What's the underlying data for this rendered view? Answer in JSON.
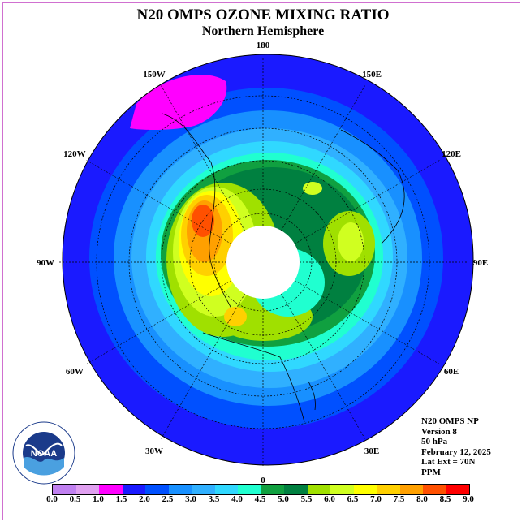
{
  "title": "N20 OMPS OZONE MIXING RATIO",
  "subtitle": "Northern Hemisphere",
  "longitude_labels": [
    {
      "label": "90E",
      "lon": 90
    },
    {
      "label": "60E",
      "lon": 60
    },
    {
      "label": "30E",
      "lon": 30
    },
    {
      "label": "0",
      "lon": 0
    },
    {
      "label": "30W",
      "lon": -30
    },
    {
      "label": "60W",
      "lon": -60
    },
    {
      "label": "90W",
      "lon": -90
    },
    {
      "label": "120W",
      "lon": -120
    },
    {
      "label": "150W",
      "lon": -150
    },
    {
      "label": "180",
      "lon": 180
    },
    {
      "label": "150E",
      "lon": 150
    },
    {
      "label": "120E",
      "lon": 120
    }
  ],
  "info": {
    "product": "N20 OMPS NP",
    "version": "Version 8",
    "level": "50 hPa",
    "date": "February 12, 2025",
    "lat_ext": "Lat Ext = 70N",
    "units": "PPM"
  },
  "logo_text": "NOAA",
  "colorbar": {
    "ticks": [
      "0.0",
      "0.5",
      "1.0",
      "1.5",
      "2.0",
      "2.5",
      "3.0",
      "3.5",
      "4.0",
      "4.5",
      "5.0",
      "5.5",
      "6.0",
      "6.5",
      "7.0",
      "7.5",
      "8.0",
      "8.5",
      "9.0"
    ],
    "colors": [
      "#c080f0",
      "#e0a0f0",
      "#ff00ff",
      "#1a1aff",
      "#0050ff",
      "#1890ff",
      "#30b0ff",
      "#30d8ff",
      "#20ffd0",
      "#10a040",
      "#008040",
      "#a0e000",
      "#d0ff20",
      "#ffff00",
      "#ffd000",
      "#ffa000",
      "#ff5000",
      "#ff0000",
      "#a05030"
    ]
  }
}
